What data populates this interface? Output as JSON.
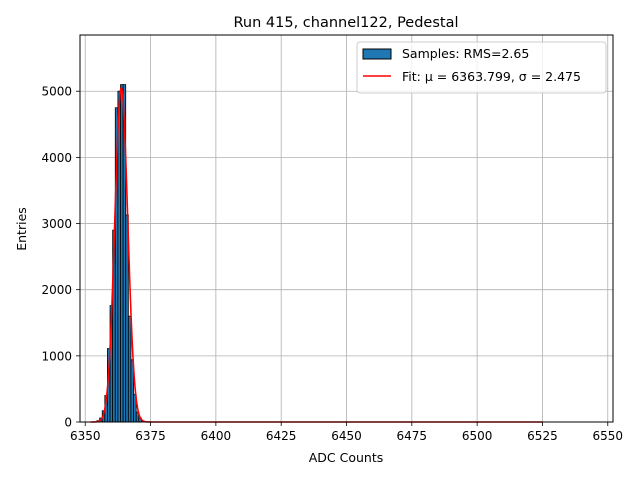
{
  "chart_data": {
    "type": "bar",
    "title": "Run 415, channel122, Pedestal",
    "xlabel": "ADC Counts",
    "ylabel": "Entries",
    "xlim": [
      6348,
      6552
    ],
    "ylim": [
      0,
      5850
    ],
    "xticks": [
      6350,
      6375,
      6400,
      6425,
      6450,
      6475,
      6500,
      6525,
      6550
    ],
    "yticks": [
      0,
      1000,
      2000,
      3000,
      4000,
      5000
    ],
    "grid": true,
    "legend": {
      "position": "top-right",
      "entries": [
        {
          "label": "Samples: RMS=2.65",
          "kind": "bar",
          "color": "#1f77b4"
        },
        {
          "label": "Fit: μ = 6363.799, σ = 2.475",
          "kind": "line",
          "color": "#ff0000"
        }
      ]
    },
    "histogram": {
      "name": "Samples: RMS=2.65",
      "color": "#1f77b4",
      "edge_color": "#000000",
      "bin_width": 1,
      "bins": [
        {
          "x": 6355,
          "count": 20
        },
        {
          "x": 6356,
          "count": 60
        },
        {
          "x": 6357,
          "count": 170
        },
        {
          "x": 6358,
          "count": 400
        },
        {
          "x": 6359,
          "count": 1110
        },
        {
          "x": 6360,
          "count": 1760
        },
        {
          "x": 6361,
          "count": 2900
        },
        {
          "x": 6362,
          "count": 4750
        },
        {
          "x": 6363,
          "count": 5000
        },
        {
          "x": 6364,
          "count": 5100
        },
        {
          "x": 6365,
          "count": 5100
        },
        {
          "x": 6366,
          "count": 3130
        },
        {
          "x": 6367,
          "count": 1600
        },
        {
          "x": 6368,
          "count": 940
        },
        {
          "x": 6369,
          "count": 420
        },
        {
          "x": 6370,
          "count": 150
        },
        {
          "x": 6371,
          "count": 60
        },
        {
          "x": 6372,
          "count": 15
        }
      ]
    },
    "fit": {
      "name": "Fit: μ = 6363.799, σ = 2.475",
      "color": "#ff0000",
      "mu": 6363.799,
      "sigma": 2.475,
      "amplitude": 5050,
      "x_range": [
        6352,
        6525
      ]
    }
  }
}
